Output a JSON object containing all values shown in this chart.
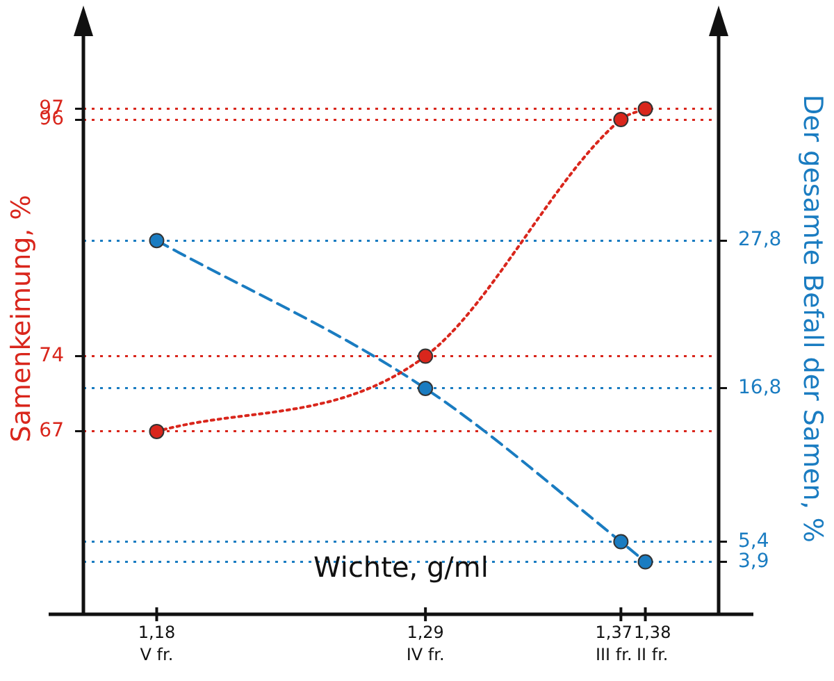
{
  "chart_data": {
    "type": "line",
    "xlabel": "Wichte, g/ml",
    "ylabel": "Samenkeimung, %",
    "y2label": "Der gesamte Befall der Samen, %",
    "x": [
      1.18,
      1.29,
      1.37,
      1.38
    ],
    "series": [
      {
        "color": "#d9261c",
        "values": [
          67,
          74,
          96,
          97
        ],
        "line_style": "dotted",
        "marker": "circle"
      },
      {
        "color": "#1a7cc1",
        "values": [
          27.8,
          16.8,
          5.4,
          3.9
        ],
        "axis": "y2",
        "line_style": "dashed",
        "marker": "circle"
      }
    ],
    "xlim": [
      1.15,
      1.41
    ],
    "xticks": [
      {
        "value": 1.18,
        "label": "1,18\nV fr."
      },
      {
        "value": 1.29,
        "label": "1,29\nIV fr."
      },
      {
        "value": 1.37,
        "label": "1,37\nIII fr."
      },
      {
        "value": 1.38,
        "label": "1,38\nII fr."
      }
    ],
    "ylim": [
      50,
      105
    ],
    "yticks": [
      67,
      74,
      96,
      97
    ],
    "y2lim": [
      0,
      44
    ],
    "y2ticks": [
      {
        "value": 3.9,
        "label": "3,9"
      },
      {
        "value": 5.4,
        "label": "5,4"
      },
      {
        "value": 16.8,
        "label": "16,8"
      },
      {
        "value": 27.8,
        "label": "27,8"
      }
    ],
    "grid": "y",
    "legend": false
  }
}
